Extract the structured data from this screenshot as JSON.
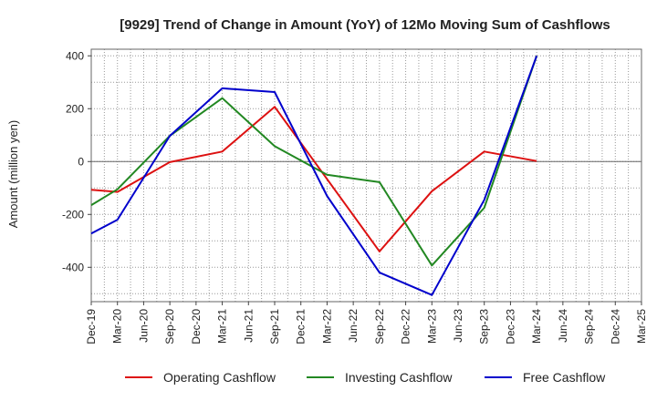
{
  "chart_data": {
    "type": "line",
    "title": "[9929]  Trend of Change in Amount (YoY) of 12Mo Moving Sum of Cashflows",
    "xlabel": "",
    "ylabel": "Amount (million yen)",
    "ylim": [
      -530,
      425
    ],
    "yticks": [
      400,
      200,
      0,
      -200,
      -400
    ],
    "grid": true,
    "legend_position": "bottom",
    "categories": [
      "Dec-19",
      "Mar-20",
      "Jun-20",
      "Sep-20",
      "Dec-20",
      "Mar-21",
      "Jun-21",
      "Sep-21",
      "Dec-21",
      "Mar-22",
      "Jun-22",
      "Sep-22",
      "Dec-22",
      "Mar-23",
      "Jun-23",
      "Sep-23",
      "Dec-23",
      "Mar-24",
      "Jun-24",
      "Sep-24",
      "Dec-24",
      "Mar-25"
    ],
    "series": [
      {
        "name": "Operating Cashflow",
        "color": "#dd1111",
        "values": [
          -107,
          -115,
          null,
          -2,
          null,
          38,
          null,
          207,
          null,
          null,
          null,
          -340,
          null,
          -112,
          null,
          38,
          null,
          2,
          null,
          null,
          null,
          null
        ]
      },
      {
        "name": "Investing Cashflow",
        "color": "#228822",
        "values": [
          -165,
          -105,
          null,
          97,
          null,
          240,
          null,
          58,
          null,
          -50,
          null,
          -78,
          null,
          -393,
          null,
          -175,
          null,
          400,
          null,
          null,
          null,
          null
        ]
      },
      {
        "name": "Free Cashflow",
        "color": "#0000cc",
        "values": [
          -272,
          -220,
          null,
          97,
          null,
          277,
          null,
          263,
          null,
          -130,
          null,
          -420,
          null,
          -505,
          null,
          -145,
          null,
          400,
          null,
          null,
          null,
          null
        ]
      }
    ]
  }
}
